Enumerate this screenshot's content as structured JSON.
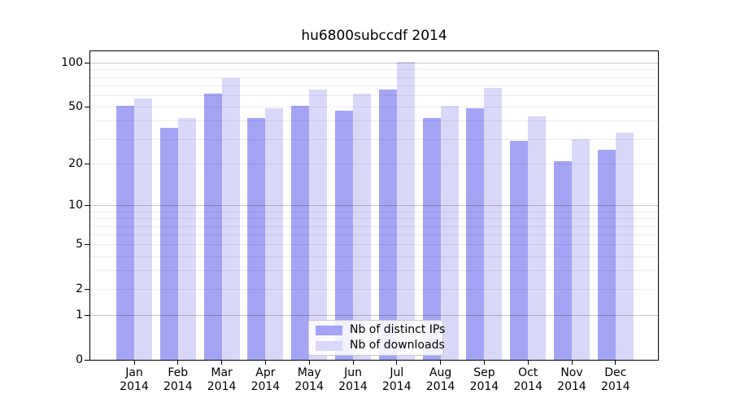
{
  "title": "hu6800subccdf 2014",
  "chart_data": {
    "type": "bar",
    "title": "hu6800subccdf 2014",
    "categories": [
      "Jan",
      "Feb",
      "Mar",
      "Apr",
      "May",
      "Jun",
      "Jul",
      "Aug",
      "Sep",
      "Oct",
      "Nov",
      "Dec"
    ],
    "year": "2014",
    "series": [
      {
        "name": "Nb of distinct IPs",
        "color": "#a5a4f4",
        "values": [
          51,
          36,
          62,
          42,
          51,
          47,
          66,
          42,
          49,
          29,
          21,
          25
        ]
      },
      {
        "name": "Nb of downloads",
        "color": "#d9d8f9",
        "values": [
          57,
          42,
          79,
          49,
          66,
          62,
          101,
          51,
          67,
          43,
          30,
          33
        ]
      }
    ],
    "y_axis": {
      "scale": "log10(1+v)",
      "tick_values": [
        0,
        1,
        2,
        5,
        10,
        20,
        50,
        100
      ],
      "tick_labels": [
        "0",
        "1",
        "2",
        "5",
        "10",
        "20",
        "50",
        "100"
      ],
      "major_gridlines": [
        1,
        10,
        100
      ],
      "minor_gridlines": [
        2,
        3,
        4,
        5,
        6,
        7,
        8,
        9,
        20,
        30,
        40,
        50,
        60,
        70,
        80,
        90
      ],
      "range": [
        0,
        120
      ]
    },
    "x_axis": {
      "label_line2": "2014"
    },
    "legend": {
      "position": "bottom-center",
      "entries": [
        "Nb of distinct IPs",
        "Nb of downloads"
      ]
    },
    "colors": {
      "background": "#ffffff",
      "axis": "#000000",
      "major_grid": "#c7c7c7",
      "minor_grid": "#ededed",
      "legend_border": "#c9c9c9"
    },
    "grid": true
  }
}
